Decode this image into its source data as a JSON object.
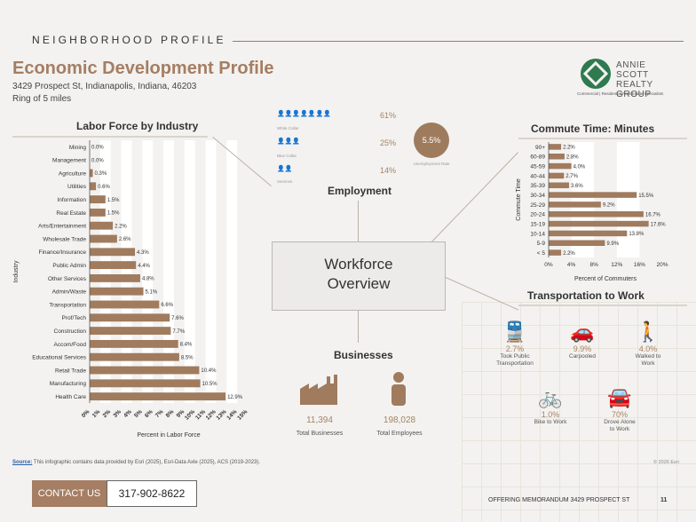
{
  "header": {
    "eyebrow": "NEIGHBORHOOD PROFILE",
    "title": "Economic Development Profile",
    "address": "3429 Prospect St, Indianapolis, Indiana, 46203",
    "ring": "Ring of 5 miles"
  },
  "logo": {
    "name_line1": "ANNIE SCOTT",
    "name_line2": "REALTY GROUP",
    "tagline": "Commercial | Residential Real Estate Specialists",
    "watermark": "esri"
  },
  "center": {
    "line1": "Workforce",
    "line2": "Overview"
  },
  "employment": {
    "title": "Employment",
    "rows": [
      {
        "label": "White Collar",
        "pct": "61%",
        "icon_count": 7
      },
      {
        "label": "Blue Collar",
        "pct": "25%",
        "icon_count": 3
      },
      {
        "label": "Services",
        "pct": "14%",
        "icon_count": 2
      }
    ],
    "unemployment_value": "5.5%",
    "unemployment_label": "Unemployment Rate"
  },
  "businesses": {
    "title": "Businesses",
    "total_businesses": "11,394",
    "total_businesses_label": "Total Businesses",
    "total_employees": "198,028",
    "total_employees_label": "Total Employees"
  },
  "transportation": {
    "title": "Transportation to Work",
    "items": [
      {
        "icon": "train-icon",
        "pct": "2.7%",
        "label1": "Took Public",
        "label2": "Transportation"
      },
      {
        "icon": "car-icon",
        "pct": "9.9%",
        "label1": "Carpooled",
        "label2": ""
      },
      {
        "icon": "walking-icon",
        "pct": "4.0%",
        "label1": "Walked to",
        "label2": "Work"
      },
      {
        "icon": "bicycle-icon",
        "pct": "1.0%",
        "label1": "Bike to Work",
        "label2": ""
      },
      {
        "icon": "car-side-icon",
        "pct": "70%",
        "label1": "Drove Alone",
        "label2": "to Work"
      }
    ]
  },
  "chart_data": [
    {
      "type": "bar",
      "orientation": "horizontal",
      "title": "Labor Force by Industry",
      "xlabel": "Percent in Labor Force",
      "ylabel": "Industry",
      "xlim": [
        0,
        15
      ],
      "xticks": [
        "0%",
        "1%",
        "2%",
        "3%",
        "4%",
        "5%",
        "6%",
        "7%",
        "8%",
        "9%",
        "10%",
        "11%",
        "12%",
        "13%",
        "14%",
        "15%"
      ],
      "categories": [
        "Mining",
        "Management",
        "Agriculture",
        "Utilities",
        "Information",
        "Real Estate",
        "Arts/Entertainment",
        "Wholesale Trade",
        "Finance/Insurance",
        "Public Admin",
        "Other Services",
        "Admin/Waste",
        "Transportation",
        "Prof/Tech",
        "Construction",
        "Accom/Food",
        "Educational Services",
        "Retail Trade",
        "Manufacturing",
        "Health Care"
      ],
      "values": [
        0.0,
        0.0,
        0.3,
        0.6,
        1.5,
        1.5,
        2.2,
        2.6,
        4.3,
        4.4,
        4.8,
        5.1,
        6.6,
        7.6,
        7.7,
        8.4,
        8.5,
        10.4,
        10.5,
        12.9
      ],
      "labels": [
        "0.0%",
        "0.0%",
        "0.3%",
        "0.6%",
        "1.5%",
        "1.5%",
        "2.2%",
        "2.6%",
        "4.3%",
        "4.4%",
        "4.8%",
        "5.1%",
        "6.6%",
        "7.6%",
        "7.7%",
        "8.4%",
        "8.5%",
        "10.4%",
        "10.5%",
        "12.9%"
      ],
      "color": "#a07b5e"
    },
    {
      "type": "bar",
      "orientation": "horizontal",
      "title": "Commute Time: Minutes",
      "xlabel": "Percent of Commuters",
      "ylabel": "Commute Time",
      "xlim": [
        0,
        20
      ],
      "xticks": [
        "0%",
        "4%",
        "8%",
        "12%",
        "16%",
        "20%"
      ],
      "categories": [
        "90+",
        "60-89",
        "45-59",
        "40-44",
        "35-39",
        "30-34",
        "25-29",
        "20-24",
        "15-19",
        "10-14",
        "5-9",
        "< 5"
      ],
      "values": [
        2.2,
        2.8,
        4.0,
        2.7,
        3.6,
        15.5,
        9.2,
        16.7,
        17.6,
        13.8,
        9.9,
        2.2
      ],
      "labels": [
        "2.2%",
        "2.8%",
        "4.0%",
        "2.7%",
        "3.6%",
        "15.5%",
        "9.2%",
        "16.7%",
        "17.6%",
        "13.8%",
        "9.9%",
        "2.2%"
      ],
      "color": "#a07b5e"
    }
  ],
  "footer": {
    "source_label": "Source:",
    "source_text": " This infographic contains data provided by Esri (2025), Esri-Data Axle (2025), ACS (2019-2023).",
    "copyright": "© 2026 Esri",
    "contact_label": "CONTACT US",
    "phone": "317-902-8622",
    "doc_name": "OFFERING MEMORANDUM  3429 PROSPECT ST",
    "page_number": "11"
  },
  "colors": {
    "accent": "#a57e63",
    "bar": "#a07b5e",
    "logo_green": "#2f7a4f"
  }
}
